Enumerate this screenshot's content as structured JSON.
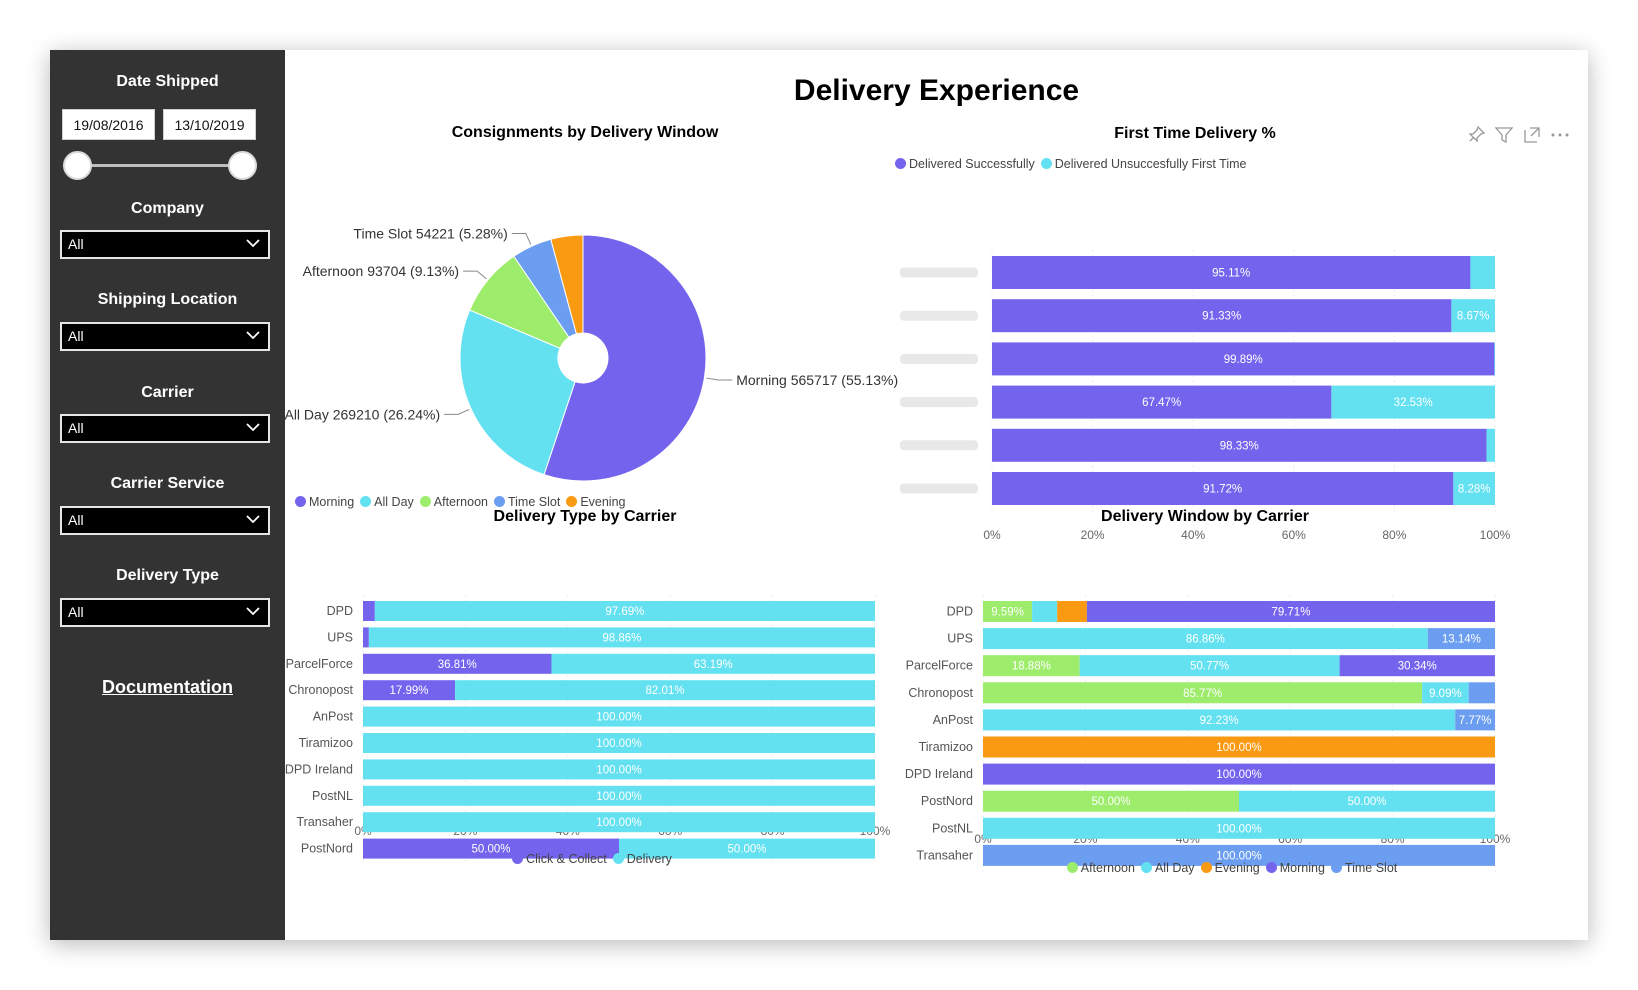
{
  "sidebar": {
    "date_label": "Date Shipped",
    "date_from": "19/08/2016",
    "date_to": "13/10/2019",
    "filters": [
      {
        "label": "Company",
        "value": "All"
      },
      {
        "label": "Shipping Location",
        "value": "All"
      },
      {
        "label": "Carrier",
        "value": "All"
      },
      {
        "label": "Carrier Service",
        "value": "All"
      },
      {
        "label": "Delivery Type",
        "value": "All"
      }
    ],
    "documentation_link": "Documentation"
  },
  "page_title": "Delivery Experience",
  "toolbar_icons": [
    "pin-icon",
    "filter-icon",
    "focus-mode-icon",
    "more-options-icon"
  ],
  "chart_data": [
    {
      "type": "pie",
      "title": "Consignments by Delivery Window",
      "donut": true,
      "legend_position": "bottom-left",
      "slices": [
        {
          "name": "Morning",
          "value": 565717,
          "percent_label": "55.13%",
          "color": "#7463ED",
          "label": "Morning 565717 (55.13%)"
        },
        {
          "name": "All Day",
          "value": 269210,
          "percent_label": "26.24%",
          "color": "#63E1F1",
          "label": "All Day 269210 (26.24%)"
        },
        {
          "name": "Afternoon",
          "value": 93704,
          "percent_label": "9.13%",
          "color": "#9DEC6B",
          "label": "Afternoon 93704 (9.13%)"
        },
        {
          "name": "Time Slot",
          "value": 54221,
          "percent_label": "5.28%",
          "color": "#6B9EF0",
          "label": "Time Slot 54221 (5.28%)"
        },
        {
          "name": "Evening",
          "value": 43264,
          "percent_label": "",
          "color": "#F99A12",
          "label": ""
        }
      ]
    },
    {
      "type": "bar",
      "orientation": "horizontal",
      "stacked": "percent",
      "title": "First Time Delivery %",
      "legend_position": "top-left",
      "categories": [
        "",
        "",
        "",
        "",
        "",
        ""
      ],
      "series": [
        {
          "name": "Delivered Successfully",
          "color": "#7463ED",
          "values": [
            95.11,
            91.33,
            99.89,
            67.47,
            98.33,
            91.72
          ],
          "labels": [
            "95.11%",
            "91.33%",
            "99.89%",
            "67.47%",
            "98.33%",
            "91.72%"
          ]
        },
        {
          "name": "Delivered Unsuccesfully First Time",
          "color": "#63E1F1",
          "values": [
            4.89,
            8.67,
            0.11,
            32.53,
            1.67,
            8.28
          ],
          "labels": [
            "",
            "8.67%",
            "",
            "32.53%",
            "",
            "8.28%"
          ]
        }
      ],
      "xticks": [
        "0%",
        "20%",
        "40%",
        "60%",
        "80%",
        "100%"
      ],
      "xlim": [
        0,
        100
      ]
    },
    {
      "type": "bar",
      "orientation": "horizontal",
      "stacked": "percent",
      "title": "Delivery Type by Carrier",
      "legend_position": "bottom-center",
      "categories": [
        "DPD",
        "UPS",
        "ParcelForce",
        "Chronopost",
        "AnPost",
        "Tiramizoo",
        "DPD Ireland",
        "PostNL",
        "Transaher",
        "PostNord"
      ],
      "series": [
        {
          "name": "Click & Collect",
          "color": "#7463ED",
          "values": [
            2.31,
            1.14,
            36.81,
            17.99,
            0,
            0,
            0,
            0,
            0,
            50.0
          ],
          "labels": [
            "",
            "",
            "36.81%",
            "17.99%",
            "",
            "",
            "",
            "",
            "",
            "50.00%"
          ]
        },
        {
          "name": "Delivery",
          "color": "#63E1F1",
          "values": [
            97.69,
            98.86,
            63.19,
            82.01,
            100,
            100,
            100,
            100,
            100,
            50.0
          ],
          "labels": [
            "97.69%",
            "98.86%",
            "63.19%",
            "82.01%",
            "100.00%",
            "100.00%",
            "100.00%",
            "100.00%",
            "100.00%",
            "50.00%"
          ]
        }
      ],
      "xticks": [
        "0%",
        "20%",
        "40%",
        "60%",
        "80%",
        "100%"
      ],
      "xlim": [
        0,
        100
      ]
    },
    {
      "type": "bar",
      "orientation": "horizontal",
      "stacked": "percent",
      "title": "Delivery Window by Carrier",
      "legend_position": "bottom-center",
      "categories": [
        "DPD",
        "UPS",
        "ParcelForce",
        "Chronopost",
        "AnPost",
        "Tiramizoo",
        "DPD Ireland",
        "PostNord",
        "PostNL",
        "Transaher"
      ],
      "series": [
        {
          "name": "Afternoon",
          "color": "#9DEC6B",
          "values": [
            9.59,
            0,
            18.88,
            85.77,
            0,
            0,
            0,
            50.0,
            0,
            0
          ],
          "labels": [
            "9.59%",
            "",
            "18.88%",
            "85.77%",
            "",
            "",
            "",
            "50.00%",
            "",
            ""
          ]
        },
        {
          "name": "All Day",
          "color": "#63E1F1",
          "values": [
            4.9,
            86.86,
            50.77,
            9.09,
            92.23,
            0,
            0,
            50.0,
            100,
            0
          ],
          "labels": [
            "",
            "86.86%",
            "50.77%",
            "9.09%",
            "92.23%",
            "",
            "",
            "50.00%",
            "100.00%",
            ""
          ]
        },
        {
          "name": "Evening",
          "color": "#F99A12",
          "values": [
            5.8,
            0,
            0,
            0,
            0,
            100,
            0,
            0,
            0,
            0
          ],
          "labels": [
            "",
            "",
            "",
            "",
            "",
            "100.00%",
            "",
            "",
            "",
            ""
          ]
        },
        {
          "name": "Morning",
          "color": "#7463ED",
          "values": [
            79.71,
            0,
            30.34,
            0,
            0,
            0,
            100,
            0,
            0,
            0
          ],
          "labels": [
            "79.71%",
            "",
            "30.34%",
            "",
            "",
            "",
            "100.00%",
            "",
            "",
            ""
          ]
        },
        {
          "name": "Time Slot",
          "color": "#6B9EF0",
          "values": [
            0,
            13.14,
            0,
            5.14,
            7.77,
            0,
            0,
            0,
            0,
            100
          ],
          "labels": [
            "",
            "13.14%",
            "",
            "",
            "7.77%",
            "",
            "",
            "",
            "",
            "100.00%"
          ]
        }
      ],
      "xticks": [
        "0%",
        "20%",
        "40%",
        "60%",
        "80%",
        "100%"
      ],
      "xlim": [
        0,
        100
      ]
    }
  ]
}
